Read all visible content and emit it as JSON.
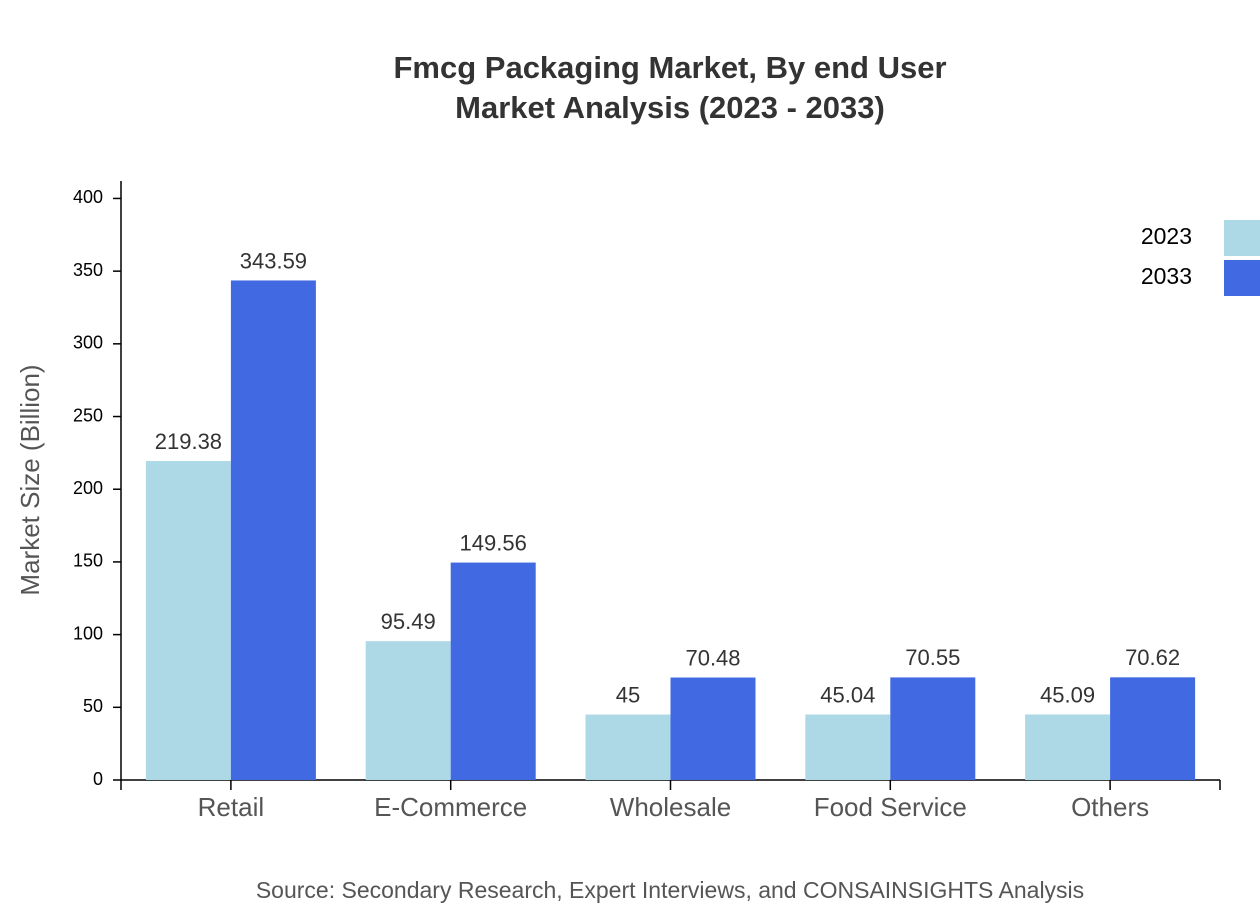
{
  "chart_data": {
    "type": "bar",
    "title": "Fmcg Packaging Market, By end User",
    "subtitle": "Market Analysis (2023 - 2033)",
    "y_label": "Market Size (Billion)",
    "source": "Source: Secondary Research, Expert Interviews, and CONSAINSIGHTS Analysis",
    "categories": [
      "Retail",
      "E-Commerce",
      "Wholesale",
      "Food Service",
      "Others"
    ],
    "series": [
      {
        "name": "2023",
        "color": "#add8e6",
        "values": [
          219.38,
          95.49,
          45,
          45.04,
          45.09
        ]
      },
      {
        "name": "2033",
        "color": "#4169e1",
        "values": [
          343.59,
          149.56,
          70.48,
          70.55,
          70.62
        ]
      }
    ],
    "ylim": [
      0,
      412
    ],
    "yticks": [
      0,
      50,
      100,
      150,
      200,
      250,
      300,
      350,
      400
    ],
    "legend": "top-right"
  }
}
